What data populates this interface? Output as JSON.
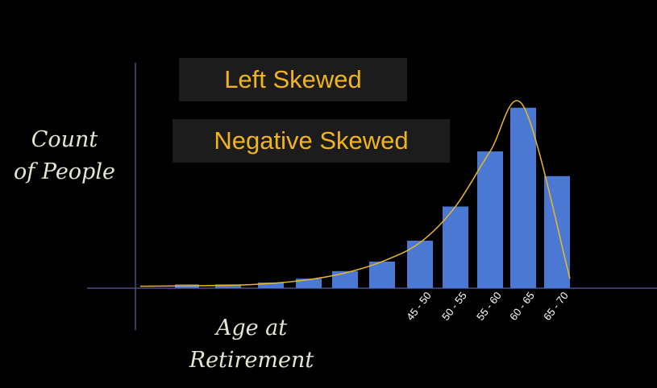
{
  "labels": {
    "tag1": "Left Skewed",
    "tag2": "Negative Skewed"
  },
  "colors": {
    "background": "#000000",
    "bars": "#4a78d3",
    "curve": "#e8b82a",
    "axis": "#4a4e86",
    "tag_text": "#f2b41c",
    "tag_box": "#1c1c1c",
    "axis_title": "#dfe8d0",
    "tick_label": "#ffffff"
  },
  "chart_data": {
    "type": "bar",
    "title": "",
    "ylabel": [
      "Count",
      "of People"
    ],
    "xlabel": [
      "Age at",
      "Retirement"
    ],
    "grid": false,
    "legend": "none",
    "ylim": [
      0,
      100
    ],
    "categories": [
      "",
      "",
      "",
      "",
      "",
      "",
      "45 - 50",
      "50 - 55",
      "55 - 60",
      "60 - 65",
      "65 - 70"
    ],
    "values": [
      2,
      2,
      3,
      5,
      9,
      14,
      25,
      43,
      72,
      95,
      59
    ],
    "overlay": {
      "type": "line",
      "description_values_follow_bar_peaks": true,
      "y": [
        1,
        1.5,
        2.5,
        4.5,
        8,
        14,
        24,
        43,
        72,
        96,
        5
      ]
    }
  }
}
